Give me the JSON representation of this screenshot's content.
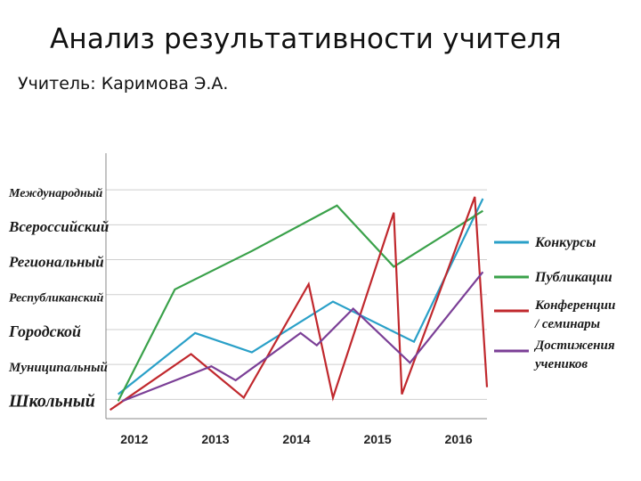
{
  "header": {
    "title": "Анализ результативности учителя",
    "teacher": "Учитель: Каримова Э.А."
  },
  "chart_data": {
    "type": "line",
    "y_categories": [
      "Школьный",
      "Муниципальный",
      "Городской",
      "Республиканский",
      "Региональный",
      "Всероссийский",
      "Международный"
    ],
    "x_ticks": [
      "2012",
      "2013",
      "2014",
      "2015",
      "2016"
    ],
    "xlim": [
      2011.8,
      2016.5
    ],
    "ylim": [
      0,
      7.6
    ],
    "grid": true,
    "legend": "right",
    "series": [
      {
        "name": "Конкурсы",
        "color": "#2aa0c8",
        "points": [
          [
            2011.95,
            0.7
          ],
          [
            2012.9,
            2.45
          ],
          [
            2013.6,
            1.9
          ],
          [
            2014.6,
            3.35
          ],
          [
            2015.6,
            2.2
          ],
          [
            2016.45,
            6.3
          ]
        ]
      },
      {
        "name": "Публикации",
        "color": "#3aa14a",
        "points": [
          [
            2011.95,
            0.5
          ],
          [
            2012.65,
            3.7
          ],
          [
            2013.6,
            4.8
          ],
          [
            2014.65,
            6.1
          ],
          [
            2015.35,
            4.35
          ],
          [
            2016.45,
            5.95
          ]
        ]
      },
      {
        "name": "Конференции / семинары",
        "color": "#c0282d",
        "points": [
          [
            2011.85,
            0.25
          ],
          [
            2012.85,
            1.85
          ],
          [
            2013.5,
            0.6
          ],
          [
            2014.3,
            3.85
          ],
          [
            2014.6,
            0.6
          ],
          [
            2015.35,
            5.9
          ],
          [
            2015.45,
            0.7
          ],
          [
            2016.35,
            6.35
          ],
          [
            2016.5,
            0.9
          ]
        ]
      },
      {
        "name": "Достижения учеников",
        "color": "#7b3f96",
        "points": [
          [
            2012.0,
            0.5
          ],
          [
            2013.1,
            1.5
          ],
          [
            2013.4,
            1.1
          ],
          [
            2014.2,
            2.45
          ],
          [
            2014.4,
            2.1
          ],
          [
            2014.85,
            3.15
          ],
          [
            2015.55,
            1.6
          ],
          [
            2016.45,
            4.2
          ]
        ]
      }
    ]
  }
}
